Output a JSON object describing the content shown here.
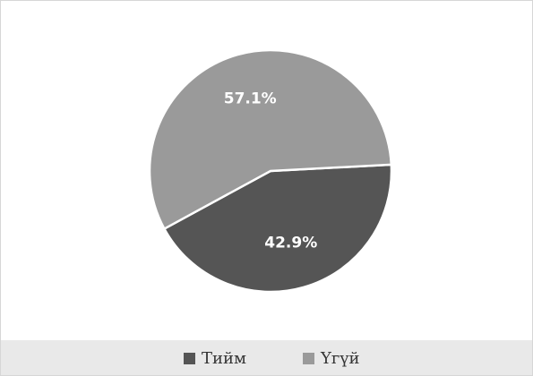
{
  "chart_data": {
    "type": "pie",
    "categories": [
      "Тийм",
      "Үгүй"
    ],
    "values": [
      42.9,
      57.1
    ],
    "value_labels": [
      "42.9%",
      "57.1%"
    ],
    "colors": [
      "#555555",
      "#9a9a9a"
    ],
    "legend": "bottom"
  }
}
